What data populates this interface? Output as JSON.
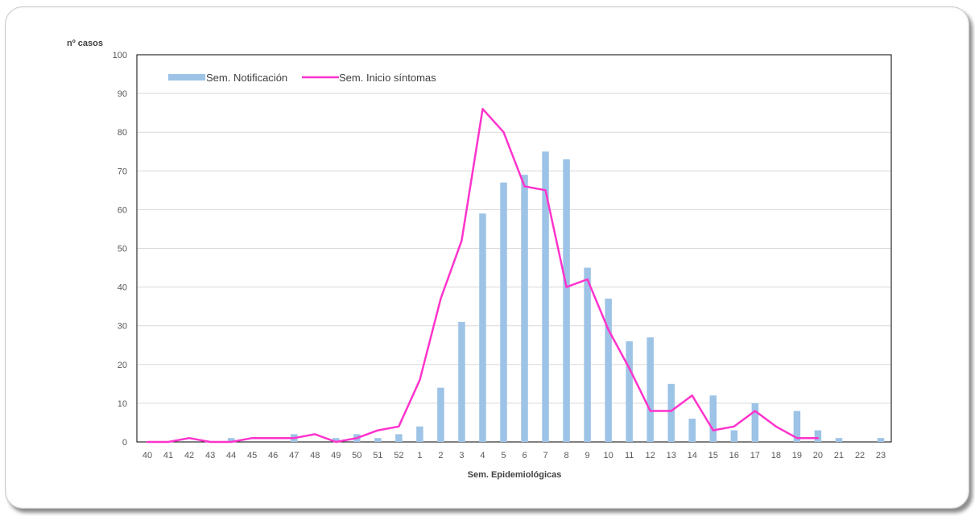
{
  "chart_data": {
    "type": "bar",
    "categories": [
      "40",
      "41",
      "42",
      "43",
      "44",
      "45",
      "46",
      "47",
      "48",
      "49",
      "50",
      "51",
      "52",
      "1",
      "2",
      "3",
      "4",
      "5",
      "6",
      "7",
      "8",
      "9",
      "10",
      "11",
      "12",
      "13",
      "14",
      "15",
      "16",
      "17",
      "18",
      "19",
      "20",
      "21",
      "22",
      "23"
    ],
    "series": [
      {
        "name": "Sem. Notificación",
        "type": "bar",
        "color": "#9dc3e6",
        "values": [
          0,
          0,
          0,
          0,
          1,
          0,
          0,
          2,
          0,
          1,
          2,
          1,
          2,
          4,
          14,
          31,
          59,
          67,
          69,
          75,
          73,
          45,
          37,
          26,
          27,
          15,
          6,
          12,
          3,
          10,
          0,
          8,
          3,
          1,
          0,
          1
        ]
      },
      {
        "name": "Sem. Inicio síntomas",
        "type": "line",
        "color": "#ff33cc",
        "values": [
          0,
          0,
          1,
          0,
          0,
          1,
          1,
          1,
          2,
          0,
          1,
          3,
          4,
          16,
          37,
          52,
          86,
          80,
          66,
          65,
          40,
          42,
          29,
          19,
          8,
          8,
          12,
          3,
          4,
          8,
          4,
          1,
          1,
          null,
          null,
          null
        ]
      }
    ],
    "ylabel": "nº casos",
    "xlabel": "Sem. Epidemiológicas",
    "ylim": [
      0,
      100
    ],
    "yticks": [
      0,
      10,
      20,
      30,
      40,
      50,
      60,
      70,
      80,
      90,
      100
    ],
    "grid": true,
    "legend_position": "top-left"
  }
}
